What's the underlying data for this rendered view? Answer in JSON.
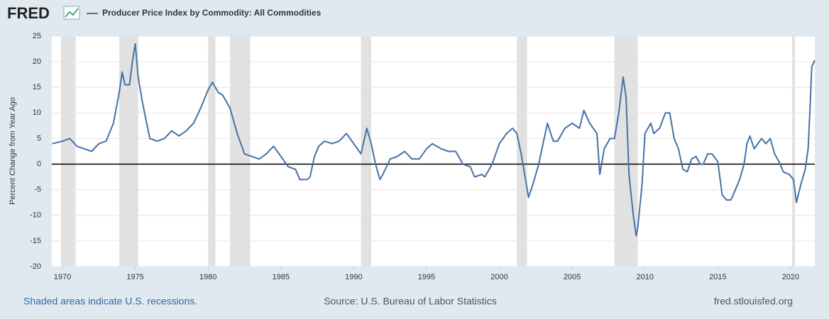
{
  "logo": "FRED",
  "chart_data": {
    "type": "line",
    "series": [
      {
        "name": "Producer Price Index by Commodity: All Commodities",
        "color": "#4572a7",
        "x": [
          1969.3,
          1970,
          1970.5,
          1971,
          1971.5,
          1972,
          1972.5,
          1973,
          1973.5,
          1973.9,
          1974.1,
          1974.3,
          1974.6,
          1974.8,
          1975,
          1975.2,
          1975.5,
          1976,
          1976.5,
          1977,
          1977.5,
          1978,
          1978.5,
          1979,
          1979.5,
          1980,
          1980.3,
          1980.7,
          1981,
          1981.5,
          1982,
          1982.5,
          1983,
          1983.5,
          1984,
          1984.5,
          1985,
          1985.5,
          1986,
          1986.3,
          1986.8,
          1987,
          1987.3,
          1987.6,
          1988,
          1988.5,
          1989,
          1989.5,
          1990,
          1990.5,
          1990.9,
          1991.2,
          1991.5,
          1991.8,
          1992,
          1992.5,
          1993,
          1993.5,
          1994,
          1994.5,
          1995,
          1995.4,
          1996,
          1996.5,
          1997,
          1997.5,
          1998,
          1998.3,
          1998.8,
          1999,
          1999.5,
          2000,
          2000.5,
          2000.9,
          2001.2,
          2001.5,
          2001.8,
          2002,
          2002.3,
          2002.7,
          2003,
          2003.3,
          2003.7,
          2004,
          2004.5,
          2005,
          2005.5,
          2005.8,
          2006.2,
          2006.7,
          2006.9,
          2007.2,
          2007.6,
          2007.9,
          2008.2,
          2008.5,
          2008.7,
          2008.9,
          2009.2,
          2009.4,
          2009.5,
          2009.8,
          2010,
          2010.4,
          2010.6,
          2011,
          2011.4,
          2011.7,
          2012,
          2012.3,
          2012.6,
          2012.9,
          2013.2,
          2013.5,
          2013.8,
          2014,
          2014.3,
          2014.6,
          2015,
          2015.3,
          2015.6,
          2015.9,
          2016.2,
          2016.5,
          2016.8,
          2017,
          2017.2,
          2017.5,
          2018,
          2018.3,
          2018.6,
          2018.9,
          2019.2,
          2019.5,
          2019.9,
          2020.2,
          2020.4,
          2020.7,
          2021,
          2021.2,
          2021.35,
          2021.45,
          2021.66
        ],
        "values": [
          4,
          4.5,
          5,
          3.5,
          3,
          2.5,
          4,
          4.5,
          8,
          14,
          18,
          15.5,
          15.5,
          20,
          23.5,
          17,
          12,
          5,
          4.5,
          5,
          6.5,
          5.5,
          6.5,
          8,
          11,
          14.5,
          16,
          14,
          13.5,
          11,
          6,
          2,
          1.5,
          1,
          2,
          3.5,
          1.5,
          -0.5,
          -1,
          -3,
          -3,
          -2.5,
          1.5,
          3.5,
          4.5,
          4,
          4.5,
          6,
          4,
          2,
          7,
          4,
          0,
          -3,
          -2,
          1,
          1.5,
          2.5,
          1,
          1,
          3,
          4,
          3,
          2.5,
          2.5,
          0,
          -0.5,
          -2.5,
          -2,
          -2.5,
          0,
          4,
          6,
          7,
          6,
          2,
          -3,
          -6.5,
          -4,
          0,
          4,
          8,
          4.5,
          4.5,
          7,
          8,
          7,
          10.5,
          8,
          6,
          -2,
          3,
          5,
          5,
          10,
          17,
          13,
          -2,
          -10,
          -14,
          -12.5,
          -4,
          6,
          8,
          6,
          7,
          10,
          10,
          5,
          3,
          -1,
          -1.5,
          1,
          1.5,
          0,
          0,
          2,
          2,
          0.5,
          -6,
          -7,
          -7,
          -5,
          -3,
          0,
          4,
          5.5,
          3,
          5,
          4,
          5,
          2,
          0.5,
          -1.5,
          -2,
          -3,
          -7.5,
          -4,
          -1,
          3,
          12,
          19,
          20.3
        ]
      }
    ],
    "recessions": [
      [
        1969.9,
        1970.9
      ],
      [
        1973.9,
        1975.2
      ],
      [
        1980.0,
        1980.5
      ],
      [
        1981.5,
        1982.9
      ],
      [
        1990.5,
        1991.2
      ],
      [
        2001.2,
        2001.9
      ],
      [
        2007.9,
        2009.5
      ],
      [
        2020.1,
        2020.3
      ]
    ],
    "ylabel": "Percent Change from Year Ago",
    "xlim": [
      1969.27,
      2021.66
    ],
    "xticks": [
      1970,
      1975,
      1980,
      1985,
      1990,
      1995,
      2000,
      2005,
      2010,
      2015,
      2020
    ],
    "ylim": [
      -20,
      25
    ],
    "yticks": [
      -20,
      -15,
      -10,
      -5,
      0,
      5,
      10,
      15,
      20,
      25
    ],
    "grid": true
  },
  "footer": {
    "note": "Shaded areas indicate U.S. recessions.",
    "source": "Source: U.S. Bureau of Labor Statistics",
    "url": "fred.stlouisfed.org"
  }
}
